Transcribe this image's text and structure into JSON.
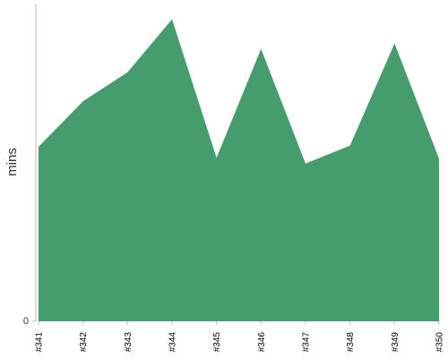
{
  "chart_data": {
    "type": "area",
    "title": "",
    "xlabel": "",
    "ylabel": "mins",
    "categories": [
      "#341",
      "#342",
      "#343",
      "#344",
      "#345",
      "#346",
      "#347",
      "#348",
      "#349",
      "#350"
    ],
    "series": [
      {
        "values": [
          5.43,
          6.85,
          7.75,
          9.4,
          5.09,
          8.48,
          4.91,
          5.47,
          8.65,
          5.06
        ]
      }
    ],
    "ylim": [
      0,
      10
    ],
    "y_ticks": [
      "0"
    ],
    "grid": false,
    "legend": "none",
    "colors": {
      "area": "#459c6d",
      "axis": "#bdbdbd"
    }
  }
}
